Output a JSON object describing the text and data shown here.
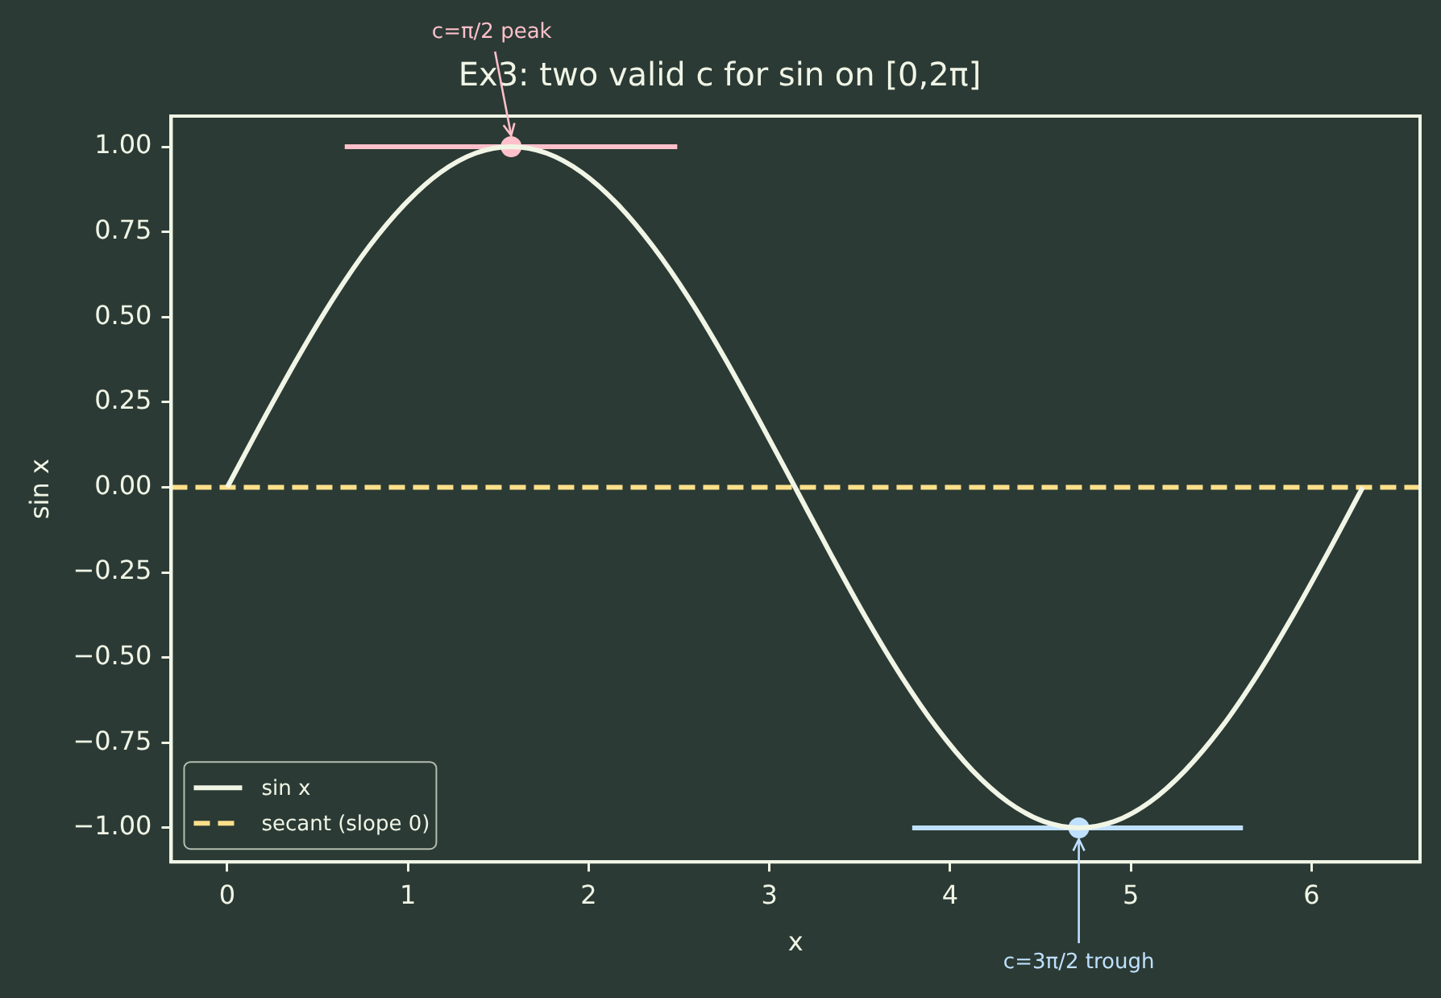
{
  "chart_data": {
    "type": "line",
    "title": "Ex3: two valid c for sin on [0,2π]",
    "xlabel": "x",
    "ylabel": "sin x",
    "xlim": [
      -0.31,
      6.6
    ],
    "xticks": [
      0,
      1,
      2,
      3,
      4,
      5,
      6
    ],
    "ylim": [
      -1.1,
      1.09
    ],
    "yticks": [
      {
        "value": -1,
        "label": "−1.00"
      },
      {
        "value": -0.75,
        "label": "−0.75"
      },
      {
        "value": -0.5,
        "label": "−0.50"
      },
      {
        "value": -0.25,
        "label": "−0.25"
      },
      {
        "value": 0,
        "label": "0.00"
      },
      {
        "value": 0.25,
        "label": "0.25"
      },
      {
        "value": 0.5,
        "label": "0.50"
      },
      {
        "value": 0.75,
        "label": "0.75"
      },
      {
        "value": 1,
        "label": "1.00"
      }
    ],
    "legend": "bottom left",
    "series": [
      {
        "name": "sin x",
        "color": "#f0f5e6",
        "x": [
          0,
          0.196,
          0.393,
          0.589,
          0.785,
          0.982,
          1.178,
          1.374,
          1.571,
          1.767,
          1.963,
          2.16,
          2.356,
          2.553,
          2.749,
          2.945,
          3.142,
          3.338,
          3.534,
          3.731,
          3.927,
          4.123,
          4.32,
          4.516,
          4.712,
          4.909,
          5.105,
          5.301,
          5.498,
          5.694,
          5.89,
          6.087,
          6.283
        ],
        "values": [
          0,
          0.195,
          0.383,
          0.556,
          0.707,
          0.831,
          0.924,
          0.981,
          1,
          0.981,
          0.924,
          0.831,
          0.707,
          0.556,
          0.383,
          0.195,
          0,
          -0.195,
          -0.383,
          -0.556,
          -0.707,
          -0.831,
          -0.924,
          -0.981,
          -1,
          -0.981,
          -0.924,
          -0.831,
          -0.707,
          -0.556,
          -0.383,
          -0.195,
          0
        ]
      },
      {
        "name": "secant (slope 0)",
        "line_style": "dashed",
        "color": "#ffe08a",
        "x": [
          -0.31,
          6.6
        ],
        "values": [
          0,
          0
        ]
      },
      {
        "color": "#ffc0cb",
        "x": [
          0.65,
          2.49
        ],
        "values": [
          1,
          1
        ]
      },
      {
        "color": "#bfe0ff",
        "x": [
          3.79,
          5.62
        ],
        "values": [
          -1,
          -1
        ]
      },
      {
        "type": "scatter",
        "marker": "circle",
        "color": "#ffc0cb",
        "x": [
          1.571
        ],
        "values": [
          1
        ]
      },
      {
        "type": "scatter",
        "marker": "circle",
        "color": "#bfe0ff",
        "x": [
          4.712
        ],
        "values": [
          -1
        ]
      }
    ],
    "annotations": [
      {
        "text": "c=π/2 peak",
        "x": 1.571,
        "y": 1
      },
      {
        "text": "c=3π/2 trough",
        "x": 4.712,
        "y": -1
      }
    ]
  }
}
